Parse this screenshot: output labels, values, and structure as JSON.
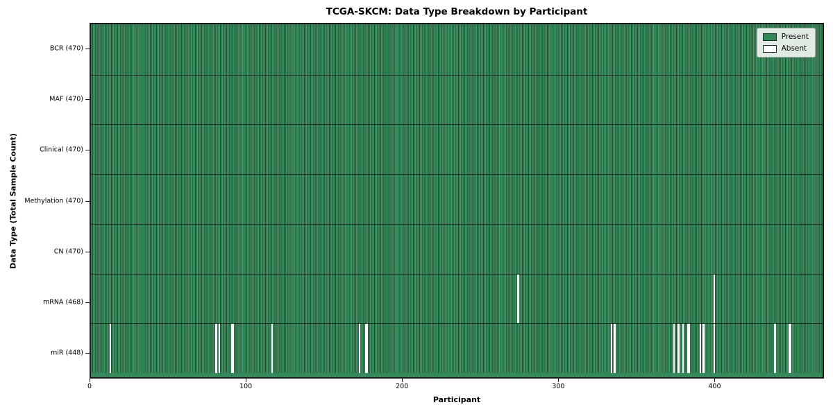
{
  "figure": {
    "background": "#ffffff"
  },
  "chart_data": {
    "type": "heatmap",
    "title": "TCGA-SKCM: Data Type Breakdown by Participant",
    "xlabel": "Participant",
    "ylabel": "Data Type (Total Sample Count)",
    "n_participants": 470,
    "x_ticks": [
      0,
      100,
      200,
      300,
      400
    ],
    "rows": [
      {
        "label": "BCR (470)",
        "data_type": "BCR",
        "present_count": 470,
        "absent_participants": []
      },
      {
        "label": "MAF (470)",
        "data_type": "MAF",
        "present_count": 470,
        "absent_participants": []
      },
      {
        "label": "Clinical (470)",
        "data_type": "Clinical",
        "present_count": 470,
        "absent_participants": []
      },
      {
        "label": "Methylation (470)",
        "data_type": "Methylation",
        "present_count": 470,
        "absent_participants": []
      },
      {
        "label": "CN (470)",
        "data_type": "CN",
        "present_count": 470,
        "absent_participants": []
      },
      {
        "label": "mRNA (468)",
        "data_type": "mRNA",
        "present_count": 468,
        "absent_participants": [
          274,
          400
        ]
      },
      {
        "label": "miR (448)",
        "data_type": "miR",
        "present_count": 448,
        "absent_participants": [
          12,
          80,
          82,
          90,
          91,
          116,
          172,
          176,
          177,
          334,
          336,
          374,
          377,
          380,
          383,
          384,
          391,
          393,
          400,
          439,
          448,
          449
        ]
      }
    ],
    "legend": {
      "position": "upper right",
      "items": [
        {
          "label": "Present",
          "color": "#2e8b57"
        },
        {
          "label": "Absent",
          "color": "#ffffff"
        }
      ]
    },
    "colors": {
      "present": "#2e8b57",
      "absent": "#ffffff",
      "cell_edge": "rgba(0,0,0,0.42)",
      "row_divider": "rgba(0,0,0,0.60)",
      "spine": "#1a1a1a"
    },
    "grid": false,
    "xlim": [
      0,
      470
    ]
  }
}
